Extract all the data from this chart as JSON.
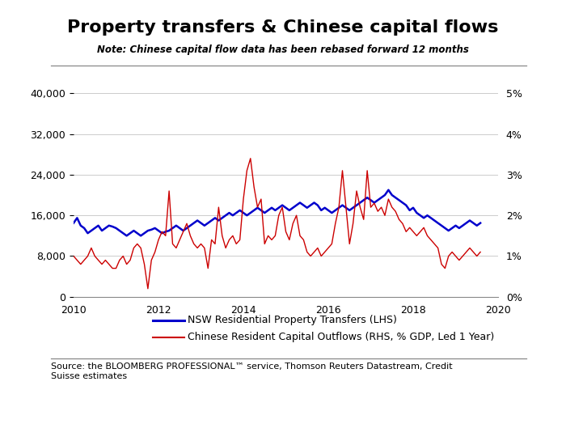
{
  "title": "Property transfers & Chinese capital flows",
  "note": "Note: Chinese capital flow data has been rebased forward 12 months",
  "source": "Source: the BLOOMBERG PROFESSIONAL™ service, Thomson Reuters Datastream, Credit\nSuisse estimates",
  "legend_lhs": "NSW Residential Property Transfers (LHS)",
  "legend_rhs": "Chinese Resident Capital Outflows (RHS, % GDP, Led 1 Year)",
  "lhs_color": "#0000CC",
  "rhs_color": "#CC0000",
  "ylim_lhs": [
    0,
    40000
  ],
  "ylim_rhs": [
    0,
    0.05
  ],
  "yticks_lhs": [
    0,
    8000,
    16000,
    24000,
    32000,
    40000
  ],
  "ytick_labels_lhs": [
    "0",
    "8,000",
    "16,000",
    "24,000",
    "32,000",
    "40,000"
  ],
  "yticks_rhs": [
    0,
    0.01,
    0.02,
    0.03,
    0.04,
    0.05
  ],
  "ytick_labels_rhs": [
    "0%",
    "1%",
    "2%",
    "3%",
    "4%",
    "5%"
  ],
  "xlim": [
    2010,
    2020
  ],
  "xticks": [
    2010,
    2012,
    2014,
    2016,
    2018,
    2020
  ],
  "nsw_dates": [
    2010.0,
    2010.083,
    2010.167,
    2010.25,
    2010.333,
    2010.417,
    2010.5,
    2010.583,
    2010.667,
    2010.75,
    2010.833,
    2010.917,
    2011.0,
    2011.083,
    2011.167,
    2011.25,
    2011.333,
    2011.417,
    2011.5,
    2011.583,
    2011.667,
    2011.75,
    2011.833,
    2011.917,
    2012.0,
    2012.083,
    2012.167,
    2012.25,
    2012.333,
    2012.417,
    2012.5,
    2012.583,
    2012.667,
    2012.75,
    2012.833,
    2012.917,
    2013.0,
    2013.083,
    2013.167,
    2013.25,
    2013.333,
    2013.417,
    2013.5,
    2013.583,
    2013.667,
    2013.75,
    2013.833,
    2013.917,
    2014.0,
    2014.083,
    2014.167,
    2014.25,
    2014.333,
    2014.417,
    2014.5,
    2014.583,
    2014.667,
    2014.75,
    2014.833,
    2014.917,
    2015.0,
    2015.083,
    2015.167,
    2015.25,
    2015.333,
    2015.417,
    2015.5,
    2015.583,
    2015.667,
    2015.75,
    2015.833,
    2015.917,
    2016.0,
    2016.083,
    2016.167,
    2016.25,
    2016.333,
    2016.417,
    2016.5,
    2016.583,
    2016.667,
    2016.75,
    2016.833,
    2016.917,
    2017.0,
    2017.083,
    2017.167,
    2017.25,
    2017.333,
    2017.417,
    2017.5,
    2017.583,
    2017.667,
    2017.75,
    2017.833,
    2017.917,
    2018.0,
    2018.083,
    2018.167,
    2018.25,
    2018.333,
    2018.417,
    2018.5,
    2018.583,
    2018.667,
    2018.75,
    2018.833,
    2018.917,
    2019.0,
    2019.083,
    2019.167,
    2019.25,
    2019.333,
    2019.417,
    2019.5,
    2019.583
  ],
  "nsw_values": [
    14500,
    15500,
    14000,
    13500,
    12500,
    13000,
    13500,
    14000,
    13000,
    13500,
    14000,
    13800,
    13500,
    13000,
    12500,
    12000,
    12500,
    13000,
    12500,
    12000,
    12500,
    13000,
    13200,
    13500,
    13000,
    12500,
    12800,
    13000,
    13500,
    14000,
    13500,
    13000,
    13500,
    14000,
    14500,
    15000,
    14500,
    14000,
    14500,
    15000,
    15500,
    15000,
    15500,
    16000,
    16500,
    16000,
    16500,
    17000,
    16500,
    16000,
    16500,
    17000,
    17500,
    17000,
    16500,
    17000,
    17500,
    17000,
    17500,
    18000,
    17500,
    17000,
    17500,
    18000,
    18500,
    18000,
    17500,
    18000,
    18500,
    18000,
    17000,
    17500,
    17000,
    16500,
    17000,
    17500,
    18000,
    17500,
    17000,
    17500,
    18000,
    18500,
    19000,
    19500,
    19000,
    18500,
    19000,
    19500,
    20000,
    21000,
    20000,
    19500,
    19000,
    18500,
    18000,
    17000,
    17500,
    16500,
    16000,
    15500,
    16000,
    15500,
    15000,
    14500,
    14000,
    13500,
    13000,
    13500,
    14000,
    13500,
    14000,
    14500,
    15000,
    14500,
    14000,
    14500
  ],
  "rhs_dates": [
    2010.0,
    2010.083,
    2010.167,
    2010.25,
    2010.333,
    2010.417,
    2010.5,
    2010.583,
    2010.667,
    2010.75,
    2010.833,
    2010.917,
    2011.0,
    2011.083,
    2011.167,
    2011.25,
    2011.333,
    2011.417,
    2011.5,
    2011.583,
    2011.667,
    2011.75,
    2011.833,
    2011.917,
    2012.0,
    2012.083,
    2012.167,
    2012.25,
    2012.333,
    2012.417,
    2012.5,
    2012.583,
    2012.667,
    2012.75,
    2012.833,
    2012.917,
    2013.0,
    2013.083,
    2013.167,
    2013.25,
    2013.333,
    2013.417,
    2013.5,
    2013.583,
    2013.667,
    2013.75,
    2013.833,
    2013.917,
    2014.0,
    2014.083,
    2014.167,
    2014.25,
    2014.333,
    2014.417,
    2014.5,
    2014.583,
    2014.667,
    2014.75,
    2014.833,
    2014.917,
    2015.0,
    2015.083,
    2015.167,
    2015.25,
    2015.333,
    2015.417,
    2015.5,
    2015.583,
    2015.667,
    2015.75,
    2015.833,
    2015.917,
    2016.0,
    2016.083,
    2016.167,
    2016.25,
    2016.333,
    2016.417,
    2016.5,
    2016.583,
    2016.667,
    2016.75,
    2016.833,
    2016.917,
    2017.0,
    2017.083,
    2017.167,
    2017.25,
    2017.333,
    2017.417,
    2017.5,
    2017.583,
    2017.667,
    2017.75,
    2017.833,
    2017.917,
    2018.0,
    2018.083,
    2018.167,
    2018.25,
    2018.333,
    2018.417,
    2018.5,
    2018.583,
    2018.667,
    2018.75,
    2018.833,
    2018.917,
    2019.0,
    2019.083,
    2019.167,
    2019.25,
    2019.333,
    2019.417,
    2019.5,
    2019.583
  ],
  "rhs_values": [
    0.01,
    0.009,
    0.008,
    0.009,
    0.01,
    0.012,
    0.01,
    0.009,
    0.008,
    0.009,
    0.008,
    0.007,
    0.007,
    0.009,
    0.01,
    0.008,
    0.009,
    0.012,
    0.013,
    0.012,
    0.008,
    0.002,
    0.009,
    0.011,
    0.014,
    0.016,
    0.015,
    0.026,
    0.013,
    0.012,
    0.014,
    0.016,
    0.018,
    0.015,
    0.013,
    0.012,
    0.013,
    0.012,
    0.007,
    0.014,
    0.013,
    0.022,
    0.015,
    0.012,
    0.014,
    0.015,
    0.013,
    0.014,
    0.024,
    0.031,
    0.034,
    0.027,
    0.022,
    0.024,
    0.013,
    0.015,
    0.014,
    0.015,
    0.02,
    0.022,
    0.016,
    0.014,
    0.018,
    0.02,
    0.015,
    0.014,
    0.011,
    0.01,
    0.011,
    0.012,
    0.01,
    0.011,
    0.012,
    0.013,
    0.018,
    0.022,
    0.031,
    0.022,
    0.013,
    0.018,
    0.026,
    0.022,
    0.019,
    0.031,
    0.022,
    0.023,
    0.021,
    0.022,
    0.02,
    0.024,
    0.022,
    0.021,
    0.019,
    0.018,
    0.016,
    0.017,
    0.016,
    0.015,
    0.016,
    0.017,
    0.015,
    0.014,
    0.013,
    0.012,
    0.008,
    0.007,
    0.01,
    0.011,
    0.01,
    0.009,
    0.01,
    0.011,
    0.012,
    0.011,
    0.01,
    0.011
  ],
  "title_fontsize": 16,
  "note_fontsize": 8.5,
  "tick_fontsize": 9,
  "legend_fontsize": 9,
  "source_fontsize": 8
}
